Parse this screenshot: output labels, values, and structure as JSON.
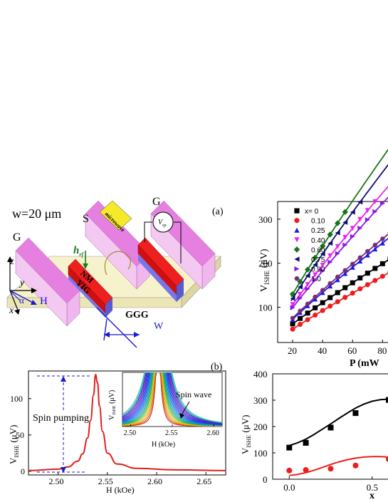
{
  "panel_a": {
    "panel_label": "(a)",
    "width_text": "w=20 μm",
    "labels": {
      "g_left": "G",
      "s": "S",
      "g_right": "G",
      "microwave": "microwave",
      "h_rf": "h",
      "h_rf_sub": "rf",
      "nm": "NM",
      "yig": "YIG",
      "ggg": "GGG",
      "w": "W",
      "v_sp": "V",
      "v_sp_sub": "sp",
      "z": "z",
      "y": "y",
      "x": "x",
      "alpha": "α",
      "H": "H"
    }
  },
  "panel_b": {
    "panel_label": "(b)",
    "ylabel_main": "V",
    "ylabel_sub": "ISHE",
    "ylabel_unit": " (μV)",
    "xlabel": "H (kOe)",
    "annotation_spin_pumping": "Spin pumping",
    "inset_ylabel_main": "V",
    "inset_ylabel_sub": "ISHE",
    "inset_ylabel_unit": " (μV)",
    "inset_xlabel": "H (kOe)",
    "inset_annotation": "Spin wave"
  },
  "panel_c": {
    "ylabel_main": "V",
    "ylabel_sub": "ISHE",
    "ylabel_unit": " (μV)",
    "xlabel": "P (mW"
  },
  "panel_d": {
    "ylabel_main": "V",
    "ylabel_sub": "ISHE",
    "ylabel_unit": " (μV)",
    "xlabel": "x"
  },
  "chart_data": [
    {
      "type": "line",
      "panel": "b",
      "xlabel": "H (kOe)",
      "ylabel": "V_ISHE (μV)",
      "xlim": [
        2.47,
        2.67
      ],
      "ylim": [
        -5,
        138
      ],
      "xticks": [
        2.5,
        2.55,
        2.6,
        2.65
      ],
      "yticks": [
        0,
        50,
        100
      ],
      "series": [
        {
          "color": "#e0201b",
          "x": [
            2.47,
            2.5,
            2.51,
            2.52,
            2.525,
            2.53,
            2.533,
            2.536,
            2.538,
            2.54,
            2.542,
            2.545,
            2.55,
            2.56,
            2.58,
            2.62,
            2.67
          ],
          "y": [
            1,
            3,
            6,
            14,
            24,
            46,
            70,
            105,
            133,
            122,
            90,
            55,
            25,
            10,
            4,
            2,
            1
          ]
        }
      ],
      "inset": {
        "xlim": [
          2.49,
          2.61
        ],
        "ylim": [
          0,
          140
        ],
        "xticks": [
          2.5,
          2.55,
          2.6
        ],
        "peak_x": 2.533,
        "curves": 18
      }
    },
    {
      "type": "scatter",
      "panel": "c",
      "xlabel": "P (mW",
      "ylabel": "V_ISHE (μV)",
      "xlim": [
        10,
        86
      ],
      "ylim": [
        20,
        340
      ],
      "xticks": [
        20,
        40,
        60,
        80
      ],
      "yticks": [
        100,
        200,
        300
      ],
      "series": [
        {
          "name": "x= 0",
          "color": "#000000",
          "marker": "square",
          "k": 4.1
        },
        {
          "name": "0.10",
          "color": "#ee1c1c",
          "marker": "circle",
          "k": 3.6
        },
        {
          "name": "0.25",
          "color": "#1a1ae8",
          "marker": "triangle-up",
          "k": 5.2
        },
        {
          "name": "0.40",
          "color": "#ee22ee",
          "marker": "triangle-down",
          "k": 7.6
        },
        {
          "name": "0.60",
          "color": "#167516",
          "marker": "diamond",
          "k": 9.3
        },
        {
          "name": "0.75",
          "color": "#0f0f70",
          "marker": "triangle-left",
          "k": 8.6
        },
        {
          "name": "0.90",
          "color": "#8a1ae0",
          "marker": "triangle-right",
          "k": 7.1
        },
        {
          "name": "1.0",
          "color": "#7a2a7a",
          "marker": "hexagon",
          "k": 5.4
        }
      ]
    },
    {
      "type": "scatter",
      "panel": "d",
      "xlabel": "x",
      "ylabel": "V_ISHE (μV)",
      "xlim": [
        -0.1,
        0.63
      ],
      "ylim": [
        0,
        400
      ],
      "xticks": [
        0.0,
        0.5
      ],
      "yticks": [
        0,
        100,
        200,
        300,
        400
      ],
      "series": [
        {
          "color": "#000000",
          "marker": "square",
          "x": [
            0.0,
            0.1,
            0.25,
            0.4,
            0.6
          ],
          "y": [
            120,
            138,
            196,
            251,
            301
          ],
          "fit_x": [
            0.0,
            0.05,
            0.1,
            0.15,
            0.2,
            0.25,
            0.3,
            0.35,
            0.4,
            0.45,
            0.5,
            0.55,
            0.6
          ],
          "fit_y": [
            128,
            138,
            152,
            170,
            190,
            210,
            231,
            251,
            270,
            285,
            296,
            302,
            304
          ]
        },
        {
          "color": "#ee1c1c",
          "marker": "circle",
          "x": [
            0.0,
            0.1,
            0.25,
            0.4,
            0.6
          ],
          "y": [
            33,
            35,
            40,
            52,
            76
          ],
          "fit_x": [
            0.0,
            0.05,
            0.1,
            0.15,
            0.2,
            0.25,
            0.3,
            0.35,
            0.4,
            0.45,
            0.5,
            0.55,
            0.6
          ],
          "fit_y": [
            14,
            18,
            25,
            34,
            45,
            56,
            66,
            74,
            80,
            84,
            86,
            86,
            84
          ]
        }
      ]
    }
  ]
}
